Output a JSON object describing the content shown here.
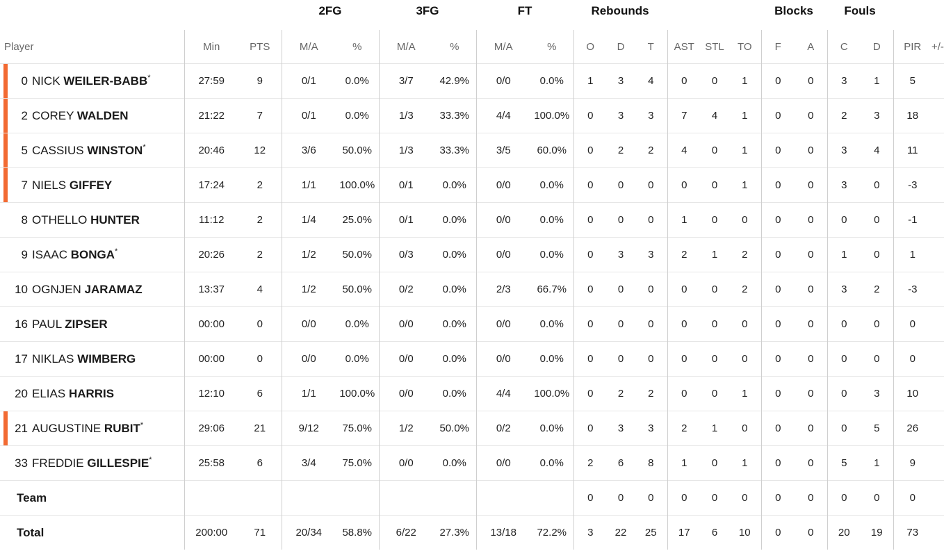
{
  "groups": {
    "fg2": "2FG",
    "fg3": "3FG",
    "ft": "FT",
    "rebounds": "Rebounds",
    "blocks": "Blocks",
    "fouls": "Fouls"
  },
  "headers": {
    "player": "Player",
    "min": "Min",
    "pts": "PTS",
    "fg2_ma": "M/A",
    "fg2_pct": "%",
    "fg3_ma": "M/A",
    "fg3_pct": "%",
    "ft_ma": "M/A",
    "ft_pct": "%",
    "reb_o": "O",
    "reb_d": "D",
    "reb_t": "T",
    "ast": "AST",
    "stl": "STL",
    "to": "TO",
    "blk_f": "F",
    "blk_a": "A",
    "foul_c": "C",
    "foul_d": "D",
    "pir": "PIR",
    "pm": "+/-"
  },
  "accent_color": "#f26a32",
  "players": [
    {
      "num": "0",
      "first": "NICK",
      "last": "WEILER-BABB",
      "star": "*",
      "starter": true,
      "min": "27:59",
      "pts": "9",
      "fg2_ma": "0/1",
      "fg2_pct": "0.0%",
      "fg3_ma": "3/7",
      "fg3_pct": "42.9%",
      "ft_ma": "0/0",
      "ft_pct": "0.0%",
      "o": "1",
      "d": "3",
      "t": "4",
      "ast": "0",
      "stl": "0",
      "to": "1",
      "f": "0",
      "a": "0",
      "c": "3",
      "fd": "1",
      "pir": "5"
    },
    {
      "num": "2",
      "first": "COREY",
      "last": "WALDEN",
      "star": "",
      "starter": true,
      "min": "21:22",
      "pts": "7",
      "fg2_ma": "0/1",
      "fg2_pct": "0.0%",
      "fg3_ma": "1/3",
      "fg3_pct": "33.3%",
      "ft_ma": "4/4",
      "ft_pct": "100.0%",
      "o": "0",
      "d": "3",
      "t": "3",
      "ast": "7",
      "stl": "4",
      "to": "1",
      "f": "0",
      "a": "0",
      "c": "2",
      "fd": "3",
      "pir": "18"
    },
    {
      "num": "5",
      "first": "CASSIUS",
      "last": "WINSTON",
      "star": "*",
      "starter": true,
      "min": "20:46",
      "pts": "12",
      "fg2_ma": "3/6",
      "fg2_pct": "50.0%",
      "fg3_ma": "1/3",
      "fg3_pct": "33.3%",
      "ft_ma": "3/5",
      "ft_pct": "60.0%",
      "o": "0",
      "d": "2",
      "t": "2",
      "ast": "4",
      "stl": "0",
      "to": "1",
      "f": "0",
      "a": "0",
      "c": "3",
      "fd": "4",
      "pir": "11"
    },
    {
      "num": "7",
      "first": "NIELS",
      "last": "GIFFEY",
      "star": "",
      "starter": true,
      "min": "17:24",
      "pts": "2",
      "fg2_ma": "1/1",
      "fg2_pct": "100.0%",
      "fg3_ma": "0/1",
      "fg3_pct": "0.0%",
      "ft_ma": "0/0",
      "ft_pct": "0.0%",
      "o": "0",
      "d": "0",
      "t": "0",
      "ast": "0",
      "stl": "0",
      "to": "1",
      "f": "0",
      "a": "0",
      "c": "3",
      "fd": "0",
      "pir": "-3"
    },
    {
      "num": "8",
      "first": "OTHELLO",
      "last": "HUNTER",
      "star": "",
      "starter": false,
      "min": "11:12",
      "pts": "2",
      "fg2_ma": "1/4",
      "fg2_pct": "25.0%",
      "fg3_ma": "0/1",
      "fg3_pct": "0.0%",
      "ft_ma": "0/0",
      "ft_pct": "0.0%",
      "o": "0",
      "d": "0",
      "t": "0",
      "ast": "1",
      "stl": "0",
      "to": "0",
      "f": "0",
      "a": "0",
      "c": "0",
      "fd": "0",
      "pir": "-1"
    },
    {
      "num": "9",
      "first": "ISAAC",
      "last": "BONGA",
      "star": "*",
      "starter": false,
      "min": "20:26",
      "pts": "2",
      "fg2_ma": "1/2",
      "fg2_pct": "50.0%",
      "fg3_ma": "0/3",
      "fg3_pct": "0.0%",
      "ft_ma": "0/0",
      "ft_pct": "0.0%",
      "o": "0",
      "d": "3",
      "t": "3",
      "ast": "2",
      "stl": "1",
      "to": "2",
      "f": "0",
      "a": "0",
      "c": "1",
      "fd": "0",
      "pir": "1"
    },
    {
      "num": "10",
      "first": "OGNJEN",
      "last": "JARAMAZ",
      "star": "",
      "starter": false,
      "min": "13:37",
      "pts": "4",
      "fg2_ma": "1/2",
      "fg2_pct": "50.0%",
      "fg3_ma": "0/2",
      "fg3_pct": "0.0%",
      "ft_ma": "2/3",
      "ft_pct": "66.7%",
      "o": "0",
      "d": "0",
      "t": "0",
      "ast": "0",
      "stl": "0",
      "to": "2",
      "f": "0",
      "a": "0",
      "c": "3",
      "fd": "2",
      "pir": "-3"
    },
    {
      "num": "16",
      "first": "PAUL",
      "last": "ZIPSER",
      "star": "",
      "starter": false,
      "min": "00:00",
      "pts": "0",
      "fg2_ma": "0/0",
      "fg2_pct": "0.0%",
      "fg3_ma": "0/0",
      "fg3_pct": "0.0%",
      "ft_ma": "0/0",
      "ft_pct": "0.0%",
      "o": "0",
      "d": "0",
      "t": "0",
      "ast": "0",
      "stl": "0",
      "to": "0",
      "f": "0",
      "a": "0",
      "c": "0",
      "fd": "0",
      "pir": "0"
    },
    {
      "num": "17",
      "first": "NIKLAS",
      "last": "WIMBERG",
      "star": "",
      "starter": false,
      "min": "00:00",
      "pts": "0",
      "fg2_ma": "0/0",
      "fg2_pct": "0.0%",
      "fg3_ma": "0/0",
      "fg3_pct": "0.0%",
      "ft_ma": "0/0",
      "ft_pct": "0.0%",
      "o": "0",
      "d": "0",
      "t": "0",
      "ast": "0",
      "stl": "0",
      "to": "0",
      "f": "0",
      "a": "0",
      "c": "0",
      "fd": "0",
      "pir": "0"
    },
    {
      "num": "20",
      "first": "ELIAS",
      "last": "HARRIS",
      "star": "",
      "starter": false,
      "min": "12:10",
      "pts": "6",
      "fg2_ma": "1/1",
      "fg2_pct": "100.0%",
      "fg3_ma": "0/0",
      "fg3_pct": "0.0%",
      "ft_ma": "4/4",
      "ft_pct": "100.0%",
      "o": "0",
      "d": "2",
      "t": "2",
      "ast": "0",
      "stl": "0",
      "to": "1",
      "f": "0",
      "a": "0",
      "c": "0",
      "fd": "3",
      "pir": "10"
    },
    {
      "num": "21",
      "first": "AUGUSTINE",
      "last": "RUBIT",
      "star": "*",
      "starter": true,
      "min": "29:06",
      "pts": "21",
      "fg2_ma": "9/12",
      "fg2_pct": "75.0%",
      "fg3_ma": "1/2",
      "fg3_pct": "50.0%",
      "ft_ma": "0/2",
      "ft_pct": "0.0%",
      "o": "0",
      "d": "3",
      "t": "3",
      "ast": "2",
      "stl": "1",
      "to": "0",
      "f": "0",
      "a": "0",
      "c": "0",
      "fd": "5",
      "pir": "26"
    },
    {
      "num": "33",
      "first": "FREDDIE",
      "last": "GILLESPIE",
      "star": "*",
      "starter": false,
      "min": "25:58",
      "pts": "6",
      "fg2_ma": "3/4",
      "fg2_pct": "75.0%",
      "fg3_ma": "0/0",
      "fg3_pct": "0.0%",
      "ft_ma": "0/0",
      "ft_pct": "0.0%",
      "o": "2",
      "d": "6",
      "t": "8",
      "ast": "1",
      "stl": "0",
      "to": "1",
      "f": "0",
      "a": "0",
      "c": "5",
      "fd": "1",
      "pir": "9"
    }
  ],
  "team": {
    "label": "Team",
    "o": "0",
    "d": "0",
    "t": "0",
    "ast": "0",
    "stl": "0",
    "to": "0",
    "f": "0",
    "a": "0",
    "c": "0",
    "fd": "0",
    "pir": "0"
  },
  "total": {
    "label": "Total",
    "min": "200:00",
    "pts": "71",
    "fg2_ma": "20/34",
    "fg2_pct": "58.8%",
    "fg3_ma": "6/22",
    "fg3_pct": "27.3%",
    "ft_ma": "13/18",
    "ft_pct": "72.2%",
    "o": "3",
    "d": "22",
    "t": "25",
    "ast": "17",
    "stl": "6",
    "to": "10",
    "f": "0",
    "a": "0",
    "c": "20",
    "fd": "19",
    "pir": "73"
  }
}
